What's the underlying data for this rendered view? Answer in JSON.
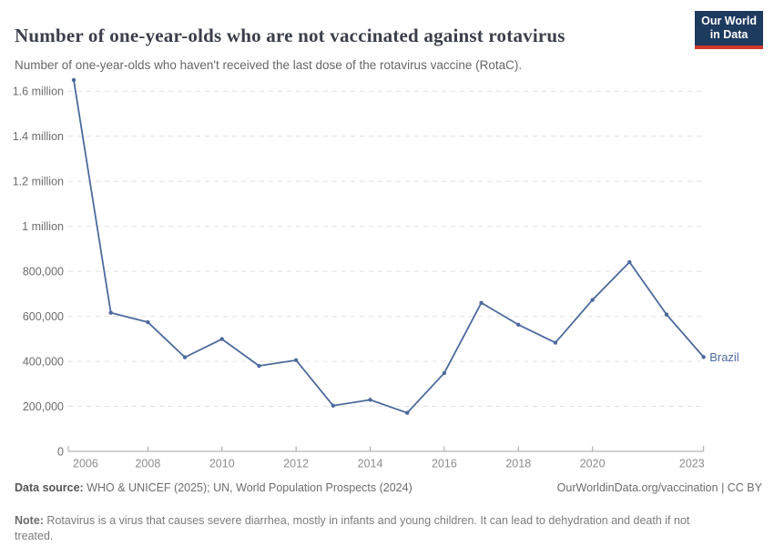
{
  "header": {
    "title": "Number of one-year-olds who are not vaccinated against rotavirus",
    "subtitle": "Number of one-year-olds who haven't received the last dose of the rotavirus vaccine (RotaC).",
    "logo": {
      "line1": "Our World",
      "line2": "in Data",
      "bg_color": "#1d3a5f",
      "accent_color": "#d0382c"
    }
  },
  "chart_data": {
    "type": "line",
    "title": "Number of one-year-olds who are not vaccinated against rotavirus",
    "subtitle": "Number of one-year-olds who haven't received the last dose of the rotavirus vaccine (RotaC).",
    "xlabel": "",
    "ylabel": "",
    "grid": "horizontal-dashed",
    "legend": "entity-label-at-line-end",
    "ylim": [
      0,
      1600000
    ],
    "series": [
      {
        "name": "Brazil",
        "color": "#4c6a9c",
        "x": [
          2006,
          2007,
          2008,
          2009,
          2010,
          2011,
          2012,
          2013,
          2014,
          2015,
          2016,
          2017,
          2018,
          2019,
          2020,
          2021,
          2022,
          2023
        ],
        "values": [
          1650000,
          616000,
          574000,
          418000,
          499000,
          380000,
          405000,
          203000,
          229000,
          171000,
          348000,
          660000,
          563000,
          483000,
          673000,
          841000,
          608000,
          419000
        ]
      }
    ],
    "yticks": [
      {
        "value": 0,
        "label": "0"
      },
      {
        "value": 200000,
        "label": "200,000"
      },
      {
        "value": 400000,
        "label": "400,000"
      },
      {
        "value": 600000,
        "label": "600,000"
      },
      {
        "value": 800000,
        "label": "800,000"
      },
      {
        "value": 1000000,
        "label": "1 million"
      },
      {
        "value": 1200000,
        "label": "1.2 million"
      },
      {
        "value": 1400000,
        "label": "1.4 million"
      },
      {
        "value": 1600000,
        "label": "1.6 million"
      }
    ],
    "xticks": [
      {
        "value": 2006,
        "label": "2006"
      },
      {
        "value": 2008,
        "label": "2008"
      },
      {
        "value": 2010,
        "label": "2010"
      },
      {
        "value": 2012,
        "label": "2012"
      },
      {
        "value": 2014,
        "label": "2014"
      },
      {
        "value": 2016,
        "label": "2016"
      },
      {
        "value": 2018,
        "label": "2018"
      },
      {
        "value": 2020,
        "label": "2020"
      },
      {
        "value": 2023,
        "label": "2023"
      }
    ],
    "entity_label": "Brazil"
  },
  "footer": {
    "datasource_label": "Data source:",
    "datasource_text": " WHO & UNICEF (2025); UN, World Population Prospects (2024)",
    "license_text": "OurWorldinData.org/vaccination | CC BY",
    "note_label": "Note:",
    "note_text": " Rotavirus is a virus that causes severe diarrhea, mostly in infants and young children. It can lead to dehydration and death if not treated."
  },
  "colors": {
    "line": "#4c6a9c",
    "gridline": "#e0e0e0",
    "axis": "#a3a3a3",
    "y_label": "#6d6d6d",
    "x_label": "#8c8c8c"
  }
}
